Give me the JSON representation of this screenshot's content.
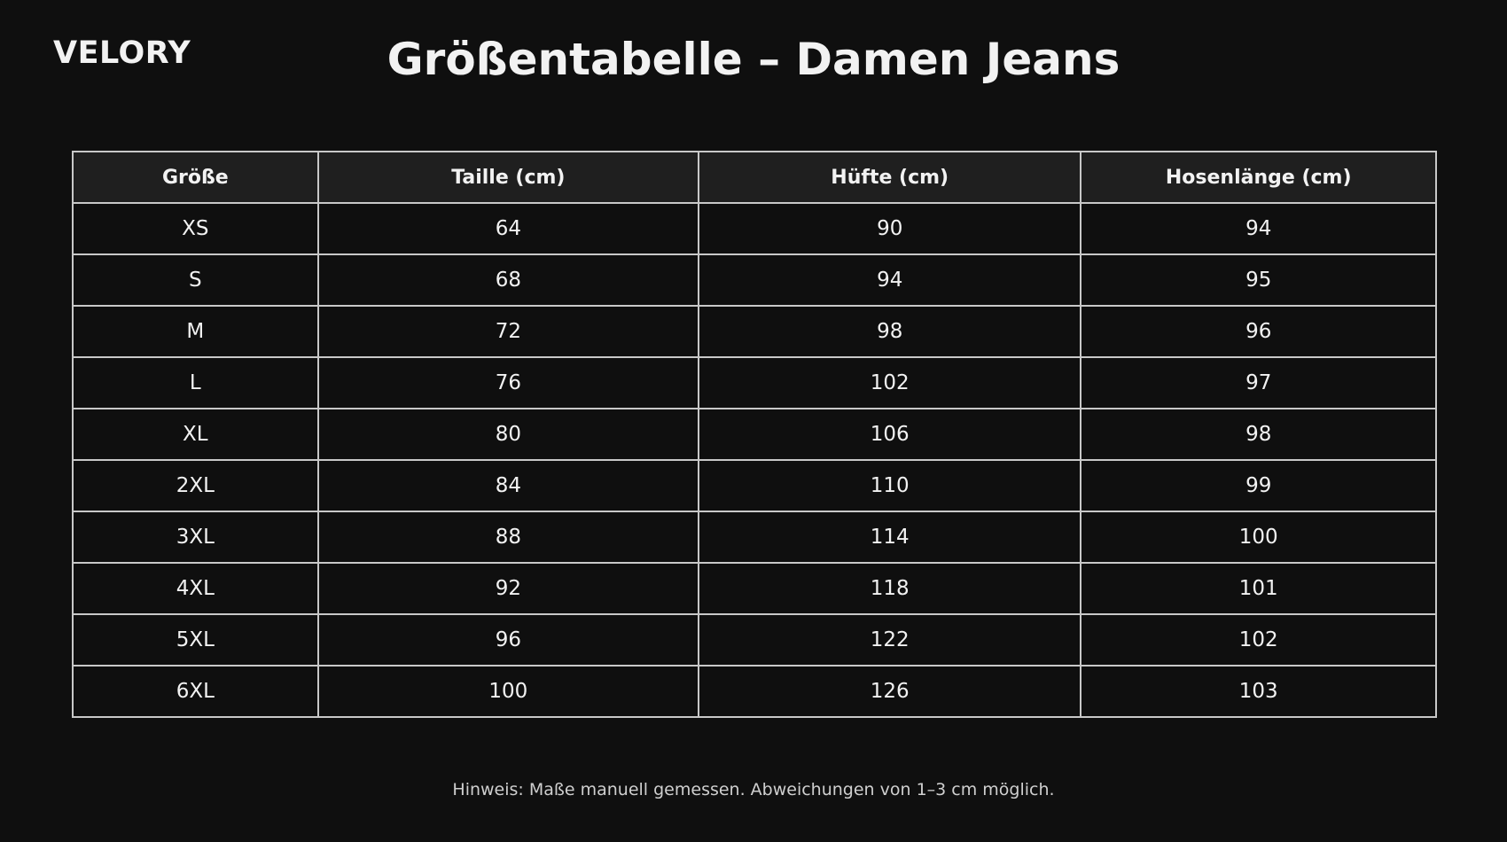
{
  "brand": "VELORY",
  "title": "Größentabelle – Damen Jeans",
  "table": {
    "headers": [
      "Größe",
      "Taille (cm)",
      "Hüfte (cm)",
      "Hosenlänge (cm)"
    ],
    "rows": [
      [
        "XS",
        "64",
        "90",
        "94"
      ],
      [
        "S",
        "68",
        "94",
        "95"
      ],
      [
        "M",
        "72",
        "98",
        "96"
      ],
      [
        "L",
        "76",
        "102",
        "97"
      ],
      [
        "XL",
        "80",
        "106",
        "98"
      ],
      [
        "2XL",
        "84",
        "110",
        "99"
      ],
      [
        "3XL",
        "88",
        "114",
        "100"
      ],
      [
        "4XL",
        "92",
        "118",
        "101"
      ],
      [
        "5XL",
        "96",
        "122",
        "102"
      ],
      [
        "6XL",
        "100",
        "126",
        "103"
      ]
    ]
  },
  "note": "Hinweis: Maße manuell gemessen. Abweichungen von 1–3 cm möglich."
}
